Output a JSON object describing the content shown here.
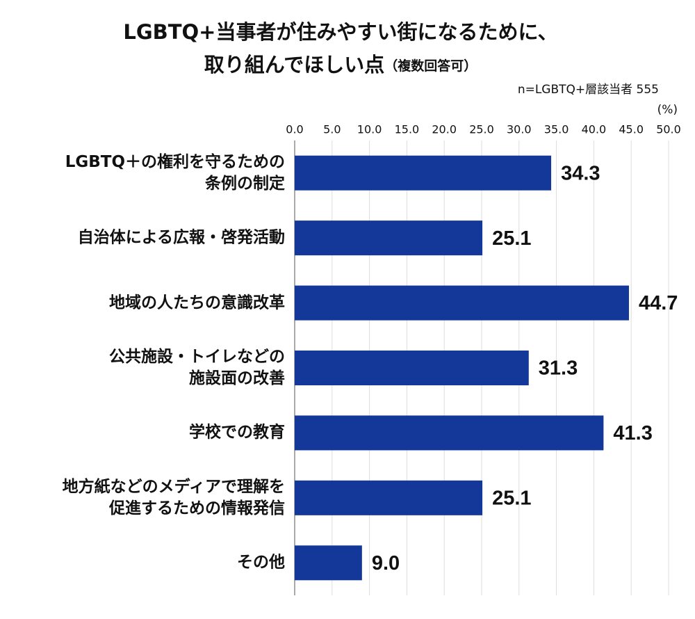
{
  "chart_data": {
    "type": "hbar",
    "title": [
      "LGBTQ+当事者が住みやすい街になるために、",
      "取り組んでほしい点"
    ],
    "title_note": "（複数回答可）",
    "subtitle": "n=LGBTQ+層該当者 555",
    "unit_label": "(%)",
    "categories": [
      "LGBTQ＋の権利を守るための\n条例の制定",
      "自治体による広報・啓発活動",
      "地域の人たちの意識改革",
      "公共施設・トイレなどの\n施設面の改善",
      "学校での教育",
      "地方紙などのメディアで理解を\n促進するための情報発信",
      "その他"
    ],
    "values": [
      34.3,
      25.1,
      44.7,
      31.3,
      41.3,
      25.1,
      9.0
    ],
    "value_labels": [
      "34.3",
      "25.1",
      "44.7",
      "31.3",
      "41.3",
      "25.1",
      "9.0"
    ],
    "color": "#14389a",
    "xlim": [
      0,
      50
    ],
    "xticks": [
      {
        "value": 0,
        "label": "0.0"
      },
      {
        "value": 5,
        "label": "5.0"
      },
      {
        "value": 10,
        "label": "10.0"
      },
      {
        "value": 15,
        "label": "15.0"
      },
      {
        "value": 20,
        "label": "20.0"
      },
      {
        "value": 25,
        "label": "25.0"
      },
      {
        "value": 30,
        "label": "30.0"
      },
      {
        "value": 35,
        "label": "35.0"
      },
      {
        "value": 40,
        "label": "40.0"
      },
      {
        "value": 45,
        "label": "45.0"
      },
      {
        "value": 50,
        "label": "50.0"
      }
    ],
    "grid": true
  }
}
